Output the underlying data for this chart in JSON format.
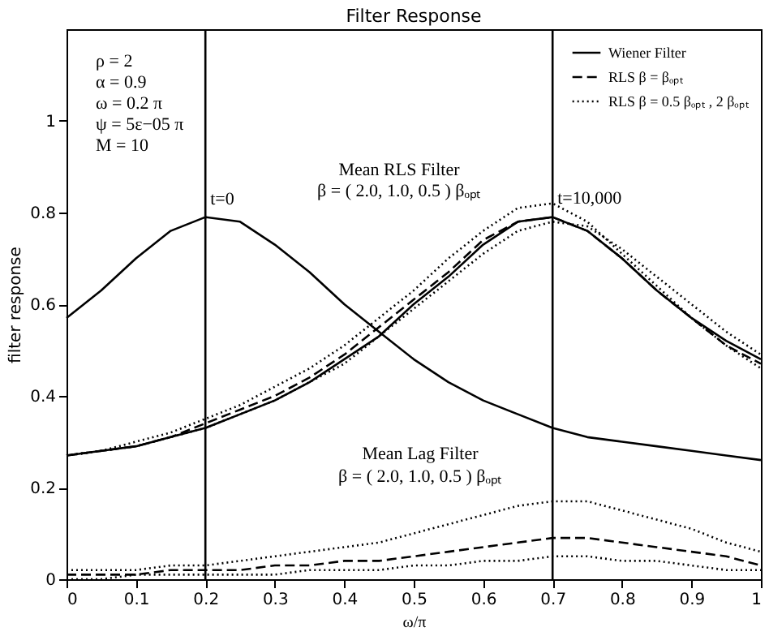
{
  "chart_data": {
    "type": "line",
    "title": "Filter Response",
    "xlabel": "ω/π",
    "ylabel": "filter response",
    "x": [
      0,
      0.05,
      0.1,
      0.15,
      0.2,
      0.25,
      0.3,
      0.35,
      0.4,
      0.45,
      0.5,
      0.55,
      0.6,
      0.65,
      0.7,
      0.75,
      0.8,
      0.85,
      0.9,
      0.95,
      1.0
    ],
    "series": [
      {
        "name": "Wiener Filter",
        "color": "#000000",
        "line_style": "solid",
        "values": [
          0.57,
          0.63,
          0.7,
          0.76,
          0.79,
          0.78,
          0.73,
          0.67,
          0.6,
          0.54,
          0.48,
          0.43,
          0.39,
          0.36,
          0.33,
          0.31,
          0.3,
          0.29,
          0.28,
          0.27,
          0.26
        ]
      },
      {
        "color": "#000000",
        "line_style": "solid",
        "values": [
          0.27,
          0.28,
          0.29,
          0.31,
          0.33,
          0.36,
          0.39,
          0.43,
          0.48,
          0.53,
          0.6,
          0.66,
          0.73,
          0.78,
          0.79,
          0.76,
          0.7,
          0.63,
          0.57,
          0.52,
          0.48
        ]
      },
      {
        "name": "RLS  β = βₒₚₜ",
        "color": "#000000",
        "line_style": "dashed",
        "values": [
          0.27,
          0.28,
          0.29,
          0.31,
          0.34,
          0.37,
          0.4,
          0.44,
          0.49,
          0.55,
          0.61,
          0.67,
          0.74,
          0.78,
          0.79,
          0.76,
          0.7,
          0.63,
          0.57,
          0.51,
          0.47
        ]
      },
      {
        "name": "RLS  β = 0.5 βₒₚₜ , 2 βₒₚₜ",
        "color": "#000000",
        "line_style": "dotted",
        "values": [
          0.27,
          0.28,
          0.3,
          0.32,
          0.35,
          0.38,
          0.42,
          0.46,
          0.51,
          0.57,
          0.63,
          0.7,
          0.76,
          0.81,
          0.82,
          0.78,
          0.71,
          0.64,
          0.57,
          0.51,
          0.46
        ]
      },
      {
        "color": "#000000",
        "line_style": "dotted",
        "values": [
          0.27,
          0.28,
          0.29,
          0.31,
          0.33,
          0.36,
          0.39,
          0.43,
          0.47,
          0.53,
          0.59,
          0.65,
          0.71,
          0.76,
          0.78,
          0.77,
          0.72,
          0.66,
          0.6,
          0.54,
          0.49
        ]
      },
      {
        "color": "#000000",
        "line_style": "dotted",
        "values": [
          0.02,
          0.02,
          0.02,
          0.03,
          0.03,
          0.04,
          0.05,
          0.06,
          0.07,
          0.08,
          0.1,
          0.12,
          0.14,
          0.16,
          0.17,
          0.17,
          0.15,
          0.13,
          0.11,
          0.08,
          0.06
        ]
      },
      {
        "color": "#000000",
        "line_style": "dashed",
        "values": [
          0.01,
          0.01,
          0.01,
          0.02,
          0.02,
          0.02,
          0.03,
          0.03,
          0.04,
          0.04,
          0.05,
          0.06,
          0.07,
          0.08,
          0.09,
          0.09,
          0.08,
          0.07,
          0.06,
          0.05,
          0.03
        ]
      },
      {
        "color": "#000000",
        "line_style": "dotted",
        "values": [
          0.0,
          0.0,
          0.01,
          0.01,
          0.01,
          0.01,
          0.01,
          0.02,
          0.02,
          0.02,
          0.03,
          0.03,
          0.04,
          0.04,
          0.05,
          0.05,
          0.04,
          0.04,
          0.03,
          0.02,
          0.02
        ]
      }
    ],
    "ref_lines": [
      {
        "axis": "x",
        "value": 0.2,
        "label": "t=0",
        "color": "#000000",
        "line_style": "solid"
      },
      {
        "axis": "x",
        "value": 0.7,
        "color": "#000000",
        "line_style": "solid"
      }
    ],
    "annotations": [
      "ρ = 2",
      "α = 0.9",
      "ω = 0.2 π",
      "ψ = 5ε−05 π",
      "M = 10",
      "Mean RLS Filter",
      "β = ( 2.0, 1.0, 0.5 ) βₒₚₜ",
      "Mean Lag Filter",
      "β = ( 2.0, 1.0, 0.5 ) βₒₚₜ",
      {
        "text": "t=10,000",
        "x": 0.7,
        "y": 0.83
      }
    ],
    "xlim": [
      0,
      1
    ],
    "xticks": [
      0,
      0.1,
      0.2,
      0.3,
      0.4,
      0.5,
      0.6,
      0.7,
      0.8,
      0.9,
      1.0
    ],
    "ylim": [
      0,
      1.2
    ],
    "yticks": [
      0,
      0.2,
      0.4,
      0.6,
      0.8,
      1
    ],
    "grid": false,
    "legend": "top right"
  }
}
